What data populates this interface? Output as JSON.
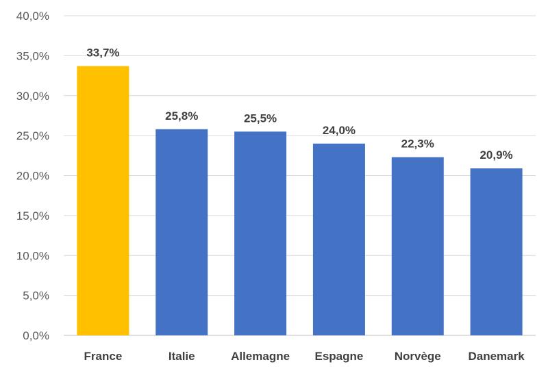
{
  "chart_data": {
    "type": "bar",
    "categories": [
      "France",
      "Italie",
      "Allemagne",
      "Espagne",
      "Norvège",
      "Danemark"
    ],
    "values": [
      33.7,
      25.8,
      25.5,
      24.0,
      22.3,
      20.9
    ],
    "data_labels": [
      "33,7%",
      "25,8%",
      "25,5%",
      "24,0%",
      "22,3%",
      "20,9%"
    ],
    "y_ticks": [
      0,
      5,
      10,
      15,
      20,
      25,
      30,
      35,
      40
    ],
    "y_tick_labels": [
      "0,0%",
      "5,0%",
      "10,0%",
      "15,0%",
      "20,0%",
      "25,0%",
      "30,0%",
      "35,0%",
      "40,0%"
    ],
    "ylim": [
      0,
      40
    ],
    "grid": true,
    "legend": "none",
    "title": "",
    "xlabel": "",
    "ylabel": "",
    "colors": {
      "highlight": "#FFC000",
      "default": "#4472C4",
      "highlight_index": 0
    }
  }
}
